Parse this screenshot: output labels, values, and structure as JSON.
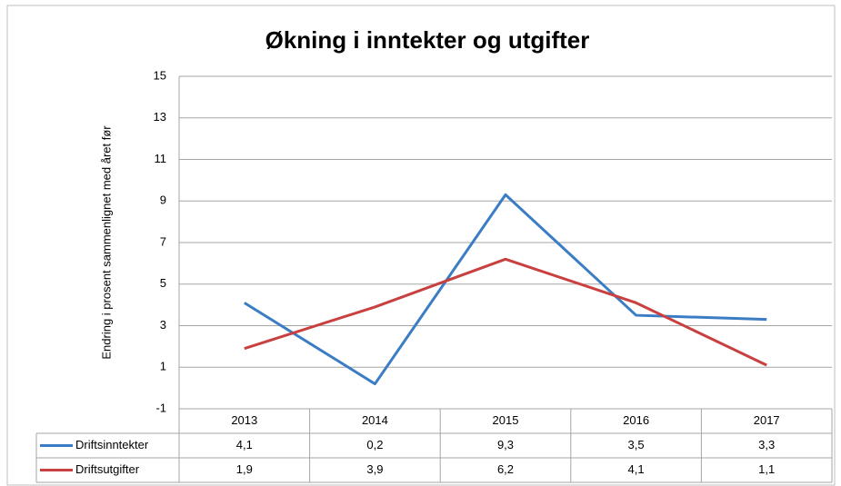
{
  "chart_data": {
    "type": "line",
    "title": "Økning i inntekter og utgifter",
    "y_label": "Endring i prosent sammenlignet med året før",
    "categories": [
      "2013",
      "2014",
      "2015",
      "2016",
      "2017"
    ],
    "series": [
      {
        "name": "Driftsinntekter",
        "color": "#3b7dc4",
        "values": [
          4.1,
          0.2,
          9.3,
          3.5,
          3.3
        ],
        "value_labels": [
          "4,1",
          "0,2",
          "9,3",
          "3,5",
          "3,3"
        ]
      },
      {
        "name": "Driftsutgifter",
        "color": "#c94040",
        "values": [
          1.9,
          3.9,
          6.2,
          4.1,
          1.1
        ],
        "value_labels": [
          "1,9",
          "3,9",
          "6,2",
          "4,1",
          "1,1"
        ]
      }
    ],
    "ylim": [
      -1,
      15
    ],
    "yticks": [
      -1,
      1,
      3,
      5,
      7,
      9,
      11,
      13,
      15
    ],
    "grid": true
  }
}
